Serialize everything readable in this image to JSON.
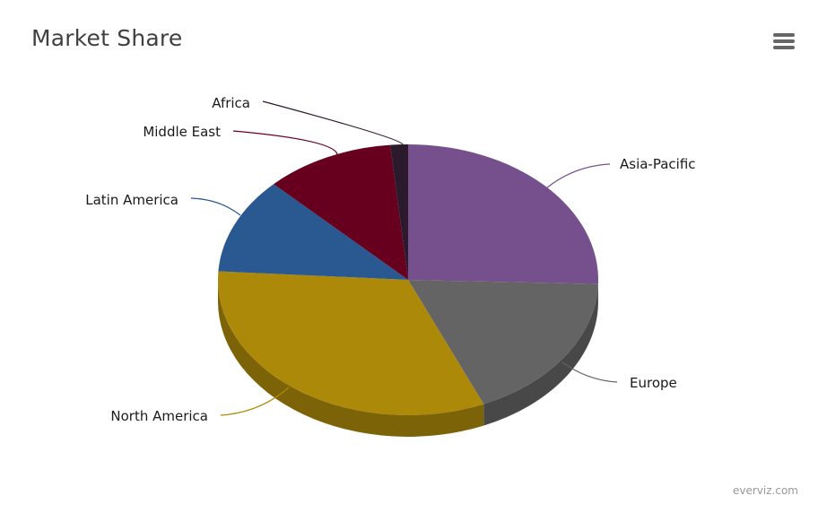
{
  "header": {
    "menu_icon": "hamburger-menu-icon"
  },
  "credit": "everviz.com",
  "chart_data": {
    "type": "pie",
    "title": "Market Share",
    "three_d": true,
    "series": [
      {
        "label": "Asia-Pacific",
        "value": 25.5,
        "color": "#76508c"
      },
      {
        "label": "Europe",
        "value": 18.0,
        "color": "#646464"
      },
      {
        "label": "North America",
        "value": 32.5,
        "color": "#ad890a"
      },
      {
        "label": "Latin America",
        "value": 11.5,
        "color": "#2a5891"
      },
      {
        "label": "Middle East",
        "value": 11.0,
        "color": "#66001e"
      },
      {
        "label": "Africa",
        "value": 1.5,
        "color": "#2b1a2b"
      }
    ]
  }
}
